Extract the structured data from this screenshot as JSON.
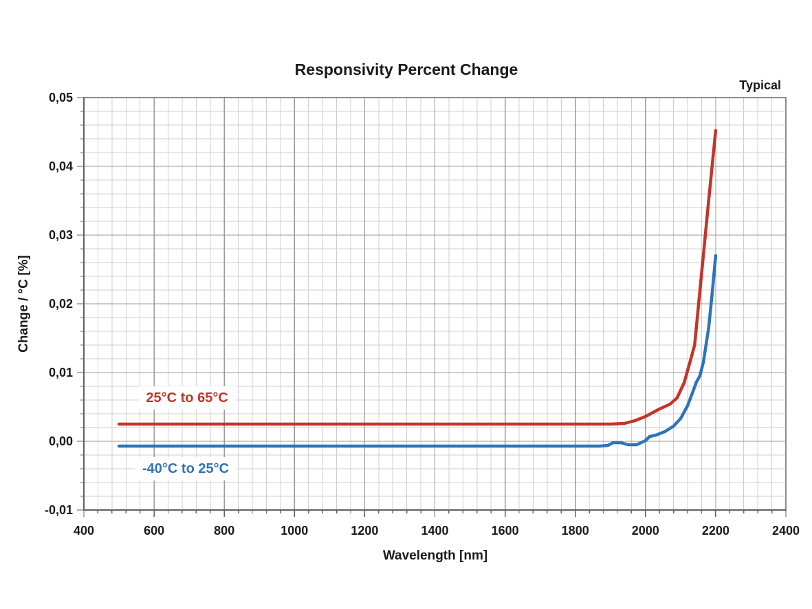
{
  "chart": {
    "title": "Responsivity Percent Change",
    "corner_note": "Typical",
    "x_axis": {
      "label": "Wavelength [nm]"
    },
    "y_axis": {
      "label": "Change / °C [%]"
    }
  },
  "chart_data": {
    "type": "line",
    "title": "Responsivity Percent Change",
    "annotation": "Typical",
    "xlabel": "Wavelength [nm]",
    "ylabel": "Change / °C [%]",
    "xlim": [
      400,
      2400
    ],
    "ylim": [
      -0.01,
      0.05
    ],
    "x_major_step": 200,
    "x_minor_step": 40,
    "y_major_step": 0.01,
    "y_minor_step": 0.002,
    "grid": "both",
    "legend_position": "inline-labels",
    "x_tick_labels": [
      "400",
      "600",
      "800",
      "1000",
      "1200",
      "1400",
      "1600",
      "1800",
      "2000",
      "2200",
      "2400"
    ],
    "y_tick_labels": [
      "0,05",
      "0,04",
      "0,03",
      "0,02",
      "0,01",
      "0,00",
      "-0,01"
    ],
    "colors": {
      "red_series": "#c43428",
      "blue_series": "#2e74b8",
      "grid_minor": "#cfcfcf",
      "grid_major": "#999999",
      "plot_border": "#8c8c8c",
      "axis_line": "#606060",
      "text": "#1a1a1a",
      "label_background": "#ffffff"
    },
    "series": [
      {
        "name": "25°C to 65°C",
        "color": "#c43428",
        "label_pos": {
          "x": 694,
          "y": 0.0064
        },
        "points": [
          [
            500,
            0.0025
          ],
          [
            800,
            0.0025
          ],
          [
            1100,
            0.0025
          ],
          [
            1400,
            0.0025
          ],
          [
            1700,
            0.0025
          ],
          [
            1850,
            0.0025
          ],
          [
            1900,
            0.0025
          ],
          [
            1940,
            0.0026
          ],
          [
            1970,
            0.003
          ],
          [
            2000,
            0.0036
          ],
          [
            2040,
            0.0047
          ],
          [
            2070,
            0.0054
          ],
          [
            2090,
            0.0063
          ],
          [
            2110,
            0.0085
          ],
          [
            2125,
            0.0112
          ],
          [
            2140,
            0.014
          ],
          [
            2160,
            0.0245
          ],
          [
            2180,
            0.035
          ],
          [
            2200,
            0.0452
          ]
        ]
      },
      {
        "name": "-40°C to 25°C",
        "color": "#2e74b8",
        "label_pos": {
          "x": 690,
          "y": -0.0039
        },
        "points": [
          [
            500,
            -0.0007
          ],
          [
            800,
            -0.0007
          ],
          [
            1100,
            -0.0007
          ],
          [
            1400,
            -0.0007
          ],
          [
            1700,
            -0.0007
          ],
          [
            1870,
            -0.0007
          ],
          [
            1893,
            -0.0006
          ],
          [
            1908,
            -0.0002
          ],
          [
            1930,
            -0.0002
          ],
          [
            1950,
            -0.0005
          ],
          [
            1975,
            -0.0005
          ],
          [
            2000,
            0.0001
          ],
          [
            2012,
            0.0007
          ],
          [
            2030,
            0.0009
          ],
          [
            2055,
            0.0014
          ],
          [
            2080,
            0.0022
          ],
          [
            2100,
            0.0033
          ],
          [
            2120,
            0.0052
          ],
          [
            2135,
            0.0072
          ],
          [
            2145,
            0.0086
          ],
          [
            2155,
            0.0095
          ],
          [
            2165,
            0.0115
          ],
          [
            2180,
            0.0165
          ],
          [
            2190,
            0.0215
          ],
          [
            2200,
            0.027
          ]
        ]
      }
    ]
  }
}
